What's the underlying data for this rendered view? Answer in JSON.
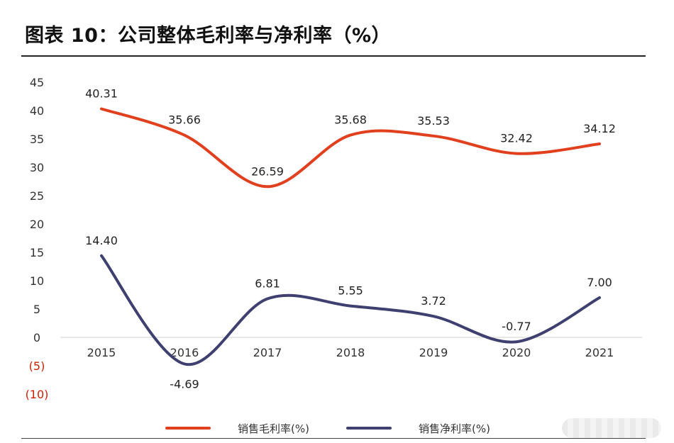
{
  "title": "图表 10：公司整体毛利率与净利率（%）",
  "chart_data": {
    "type": "line",
    "title": "图表 10：公司整体毛利率与净利率（%）",
    "x": [
      "2015",
      "2016",
      "2017",
      "2018",
      "2019",
      "2020",
      "2021"
    ],
    "ylim": [
      -10,
      45
    ],
    "y_ticks": [
      {
        "value": 45,
        "label": "45"
      },
      {
        "value": 40,
        "label": "40"
      },
      {
        "value": 35,
        "label": "35"
      },
      {
        "value": 30,
        "label": "30"
      },
      {
        "value": 25,
        "label": "25"
      },
      {
        "value": 20,
        "label": "20"
      },
      {
        "value": 15,
        "label": "15"
      },
      {
        "value": 10,
        "label": "10"
      },
      {
        "value": 5,
        "label": "5"
      },
      {
        "value": 0,
        "label": "0"
      },
      {
        "value": -5,
        "label": "(5)"
      },
      {
        "value": -10,
        "label": "(10)"
      }
    ],
    "grid": false,
    "legend_position": "bottom",
    "series": [
      {
        "name": "销售毛利率(%)",
        "color": "#e1401e",
        "values": [
          40.31,
          35.66,
          26.59,
          35.68,
          35.53,
          32.42,
          34.12
        ],
        "labels": [
          "40.31",
          "35.66",
          "26.59",
          "35.68",
          "35.53",
          "32.42",
          "34.12"
        ]
      },
      {
        "name": "销售净利率(%)",
        "color": "#3f3f70",
        "values": [
          14.4,
          -4.69,
          6.81,
          5.55,
          3.72,
          -0.77,
          7.0
        ],
        "labels": [
          "14.40",
          "-4.69",
          "6.81",
          "5.55",
          "3.72",
          "-0.77",
          "7.00"
        ]
      }
    ],
    "negative_tick_color": "#cc2200",
    "label_color": "#222222"
  }
}
